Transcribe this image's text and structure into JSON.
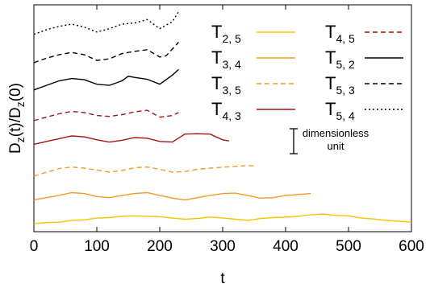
{
  "chart_data": {
    "type": "line",
    "xlabel": "t",
    "ylabel": {
      "main": "D",
      "sub": "z",
      "rest1": "(t)/D",
      "sub2": "z",
      "rest2": "(0)"
    },
    "xlim": [
      0,
      600
    ],
    "ylim": [
      0,
      1
    ],
    "y_ticks_labeled": false,
    "xticks": [
      "0",
      "100",
      "200",
      "300",
      "400",
      "500",
      "600"
    ],
    "annotation": {
      "line1": "dimensionless",
      "line2": "unit",
      "bar_height": 0.11
    },
    "series": [
      {
        "name": "T",
        "sub": "2, 5",
        "color": "#f5c400",
        "dash": "solid",
        "x": [
          0,
          20,
          40,
          60,
          80,
          100,
          120,
          140,
          160,
          180,
          200,
          220,
          240,
          260,
          280,
          300,
          320,
          340,
          360,
          380,
          400,
          420,
          440,
          460,
          480,
          500,
          520,
          540,
          560,
          580,
          600
        ],
        "y": [
          0.035,
          0.04,
          0.042,
          0.05,
          0.052,
          0.06,
          0.062,
          0.068,
          0.07,
          0.068,
          0.066,
          0.06,
          0.055,
          0.058,
          0.065,
          0.06,
          0.055,
          0.05,
          0.058,
          0.062,
          0.064,
          0.068,
          0.075,
          0.078,
          0.072,
          0.07,
          0.06,
          0.056,
          0.05,
          0.046,
          0.042
        ]
      },
      {
        "name": "T",
        "sub": "3, 4",
        "color": "#f39a2b",
        "dash": "solid",
        "x": [
          0,
          20,
          40,
          60,
          80,
          100,
          120,
          140,
          160,
          180,
          200,
          220,
          240,
          260,
          280,
          300,
          320,
          340,
          360,
          380,
          400,
          420,
          440
        ],
        "y": [
          0.14,
          0.15,
          0.16,
          0.172,
          0.168,
          0.155,
          0.15,
          0.16,
          0.168,
          0.172,
          0.16,
          0.148,
          0.14,
          0.15,
          0.16,
          0.168,
          0.17,
          0.16,
          0.148,
          0.15,
          0.16,
          0.164,
          0.168
        ]
      },
      {
        "name": "T",
        "sub": "3, 5",
        "color": "#f39a2b",
        "dash": "dashed",
        "x": [
          0,
          20,
          40,
          60,
          80,
          100,
          120,
          140,
          160,
          180,
          200,
          220,
          240,
          260,
          280,
          300,
          320,
          340,
          350
        ],
        "y": [
          0.245,
          0.262,
          0.278,
          0.285,
          0.28,
          0.272,
          0.262,
          0.27,
          0.282,
          0.285,
          0.275,
          0.262,
          0.265,
          0.275,
          0.28,
          0.284,
          0.288,
          0.292,
          0.29
        ]
      },
      {
        "name": "T",
        "sub": "4, 3",
        "color": "#a01515",
        "dash": "solid",
        "x": [
          0,
          20,
          40,
          60,
          80,
          100,
          120,
          140,
          160,
          180,
          200,
          220,
          240,
          260,
          280,
          300,
          310
        ],
        "y": [
          0.385,
          0.398,
          0.41,
          0.422,
          0.418,
          0.405,
          0.395,
          0.403,
          0.415,
          0.412,
          0.398,
          0.395,
          0.43,
          0.432,
          0.43,
          0.405,
          0.4
        ]
      },
      {
        "name": "T",
        "sub": "4, 5",
        "color": "#a01515",
        "dash": "dashed",
        "x": [
          0,
          20,
          40,
          60,
          80,
          100,
          120,
          140,
          160,
          180,
          200,
          220,
          230
        ],
        "y": [
          0.49,
          0.505,
          0.52,
          0.53,
          0.525,
          0.512,
          0.508,
          0.516,
          0.528,
          0.535,
          0.505,
          0.512,
          0.525
        ]
      },
      {
        "name": "T",
        "sub": "5, 2",
        "color": "#000000",
        "dash": "solid",
        "x": [
          0,
          20,
          40,
          60,
          80,
          100,
          120,
          140,
          150,
          160,
          180,
          200,
          220,
          230
        ],
        "y": [
          0.625,
          0.645,
          0.665,
          0.675,
          0.67,
          0.65,
          0.645,
          0.665,
          0.685,
          0.68,
          0.672,
          0.65,
          0.69,
          0.715
        ]
      },
      {
        "name": "T",
        "sub": "5, 3",
        "color": "#000000",
        "dash": "dashed",
        "x": [
          0,
          20,
          40,
          60,
          80,
          100,
          120,
          140,
          160,
          180,
          200,
          210,
          220,
          230
        ],
        "y": [
          0.745,
          0.765,
          0.78,
          0.79,
          0.78,
          0.755,
          0.762,
          0.785,
          0.795,
          0.802,
          0.77,
          0.775,
          0.805,
          0.835
        ]
      },
      {
        "name": "T",
        "sub": "5, 4",
        "color": "#000000",
        "dash": "dotted",
        "x": [
          0,
          20,
          40,
          60,
          80,
          100,
          120,
          140,
          160,
          180,
          200,
          220,
          230
        ],
        "y": [
          0.87,
          0.89,
          0.905,
          0.915,
          0.902,
          0.88,
          0.895,
          0.915,
          0.92,
          0.935,
          0.895,
          0.925,
          0.97
        ]
      }
    ]
  }
}
